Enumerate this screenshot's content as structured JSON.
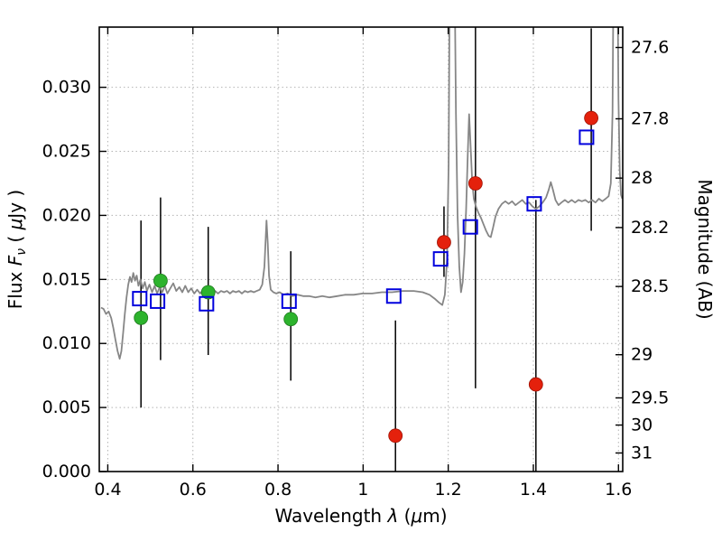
{
  "chart_data": {
    "type": "line",
    "title": "",
    "xlabel": "Wavelength λ (μm)",
    "ylabel": "Flux Fν ( μJy )",
    "y2label": "Magnitude (AB)",
    "xlabel_parts": [
      {
        "t": "Wavelength  "
      },
      {
        "t": "λ",
        "it": true
      },
      {
        "t": " ("
      },
      {
        "t": "μ",
        "it": true
      },
      {
        "t": "m)"
      }
    ],
    "ylabel_parts": [
      {
        "t": "Flux  "
      },
      {
        "t": "F",
        "it": true
      },
      {
        "t": "ν",
        "it": true,
        "sub": true
      },
      {
        "t": "  ( ",
        "after_sub": true
      },
      {
        "t": "μ",
        "it": true
      },
      {
        "t": "Jy )"
      }
    ],
    "xlim": [
      0.38,
      1.61
    ],
    "ylim": [
      0.0,
      0.0347
    ],
    "grid": {
      "show": true,
      "color": "#b3b3b3",
      "style": "dotted"
    },
    "legend": {
      "show": false
    },
    "colors": {
      "spectrum": "#868686",
      "blue_square": "#0000dd",
      "green_circle": "#2db32d",
      "red_circle": "#e4210c",
      "error_bar": "#000000",
      "axis": "#000000"
    },
    "x_ticks": [
      {
        "v": 0.4,
        "label": "0.4"
      },
      {
        "v": 0.6,
        "label": "0.6"
      },
      {
        "v": 0.8,
        "label": "0.8"
      },
      {
        "v": 1.0,
        "label": "1"
      },
      {
        "v": 1.2,
        "label": "1.2"
      },
      {
        "v": 1.4,
        "label": "1.4"
      },
      {
        "v": 1.6,
        "label": "1.6"
      }
    ],
    "y_ticks": [
      {
        "v": 0.0,
        "label": "0.000"
      },
      {
        "v": 0.005,
        "label": "0.005"
      },
      {
        "v": 0.01,
        "label": "0.010"
      },
      {
        "v": 0.015,
        "label": "0.015"
      },
      {
        "v": 0.02,
        "label": "0.020"
      },
      {
        "v": 0.025,
        "label": "0.025"
      },
      {
        "v": 0.03,
        "label": "0.030"
      }
    ],
    "y2_ticks": [
      {
        "label": "27.6",
        "flux_equiv": 0.03311
      },
      {
        "label": "27.8",
        "flux_equiv": 0.02754
      },
      {
        "label": "28",
        "flux_equiv": 0.02291
      },
      {
        "label": "28.2",
        "flux_equiv": 0.01905
      },
      {
        "label": "28.5",
        "flux_equiv": 0.01445
      },
      {
        "label": "29",
        "flux_equiv": 0.00912
      },
      {
        "label": "29.5",
        "flux_equiv": 0.00575
      },
      {
        "label": "30",
        "flux_equiv": 0.00363
      },
      {
        "label": "31",
        "flux_equiv": 0.00145
      }
    ],
    "series": {
      "spectrum": {
        "name": "model-spectrum",
        "color": "#868686",
        "width": 1.8,
        "points": [
          [
            0.384,
            0.0128
          ],
          [
            0.39,
            0.0127
          ],
          [
            0.396,
            0.0123
          ],
          [
            0.402,
            0.0125
          ],
          [
            0.408,
            0.012
          ],
          [
            0.413,
            0.0112
          ],
          [
            0.418,
            0.0103
          ],
          [
            0.423,
            0.0094
          ],
          [
            0.428,
            0.0088
          ],
          [
            0.432,
            0.0094
          ],
          [
            0.436,
            0.0108
          ],
          [
            0.44,
            0.0123
          ],
          [
            0.444,
            0.0136
          ],
          [
            0.448,
            0.0146
          ],
          [
            0.452,
            0.0152
          ],
          [
            0.456,
            0.0148
          ],
          [
            0.46,
            0.0155
          ],
          [
            0.464,
            0.0149
          ],
          [
            0.468,
            0.0153
          ],
          [
            0.472,
            0.0145
          ],
          [
            0.477,
            0.015
          ],
          [
            0.482,
            0.0143
          ],
          [
            0.487,
            0.0148
          ],
          [
            0.492,
            0.0141
          ],
          [
            0.498,
            0.0146
          ],
          [
            0.504,
            0.014
          ],
          [
            0.51,
            0.0145
          ],
          [
            0.516,
            0.0139
          ],
          [
            0.522,
            0.0144
          ],
          [
            0.528,
            0.014
          ],
          [
            0.534,
            0.0145
          ],
          [
            0.54,
            0.0139
          ],
          [
            0.547,
            0.0143
          ],
          [
            0.554,
            0.0147
          ],
          [
            0.561,
            0.0141
          ],
          [
            0.568,
            0.0144
          ],
          [
            0.575,
            0.014
          ],
          [
            0.582,
            0.0145
          ],
          [
            0.589,
            0.014
          ],
          [
            0.596,
            0.0143
          ],
          [
            0.603,
            0.0139
          ],
          [
            0.61,
            0.0142
          ],
          [
            0.617,
            0.0139
          ],
          [
            0.624,
            0.0142
          ],
          [
            0.631,
            0.014
          ],
          [
            0.638,
            0.0142
          ],
          [
            0.645,
            0.0139
          ],
          [
            0.652,
            0.0141
          ],
          [
            0.659,
            0.0139
          ],
          [
            0.666,
            0.0141
          ],
          [
            0.673,
            0.014
          ],
          [
            0.68,
            0.0141
          ],
          [
            0.687,
            0.0139
          ],
          [
            0.694,
            0.0141
          ],
          [
            0.701,
            0.014
          ],
          [
            0.708,
            0.0141
          ],
          [
            0.715,
            0.0139
          ],
          [
            0.722,
            0.0141
          ],
          [
            0.729,
            0.014
          ],
          [
            0.736,
            0.0141
          ],
          [
            0.743,
            0.014
          ],
          [
            0.75,
            0.0141
          ],
          [
            0.757,
            0.0142
          ],
          [
            0.763,
            0.0146
          ],
          [
            0.768,
            0.016
          ],
          [
            0.771,
            0.0182
          ],
          [
            0.773,
            0.0196
          ],
          [
            0.776,
            0.0178
          ],
          [
            0.779,
            0.0153
          ],
          [
            0.783,
            0.0142
          ],
          [
            0.789,
            0.014
          ],
          [
            0.796,
            0.0139
          ],
          [
            0.804,
            0.014
          ],
          [
            0.813,
            0.0138
          ],
          [
            0.823,
            0.0139
          ],
          [
            0.834,
            0.0137
          ],
          [
            0.846,
            0.0138
          ],
          [
            0.859,
            0.0137
          ],
          [
            0.873,
            0.0137
          ],
          [
            0.888,
            0.0136
          ],
          [
            0.904,
            0.0137
          ],
          [
            0.921,
            0.0136
          ],
          [
            0.939,
            0.0137
          ],
          [
            0.958,
            0.0138
          ],
          [
            0.978,
            0.0138
          ],
          [
            0.999,
            0.0139
          ],
          [
            1.021,
            0.0139
          ],
          [
            1.044,
            0.014
          ],
          [
            1.068,
            0.014
          ],
          [
            1.093,
            0.0141
          ],
          [
            1.119,
            0.0141
          ],
          [
            1.14,
            0.014
          ],
          [
            1.156,
            0.0138
          ],
          [
            1.168,
            0.0135
          ],
          [
            1.178,
            0.0132
          ],
          [
            1.186,
            0.013
          ],
          [
            1.192,
            0.0138
          ],
          [
            1.197,
            0.0165
          ],
          [
            1.201,
            0.024
          ],
          [
            1.204,
            0.042
          ],
          [
            1.214,
            0.042
          ],
          [
            1.218,
            0.028
          ],
          [
            1.222,
            0.02
          ],
          [
            1.226,
            0.016
          ],
          [
            1.23,
            0.014
          ],
          [
            1.234,
            0.0148
          ],
          [
            1.238,
            0.017
          ],
          [
            1.242,
            0.0205
          ],
          [
            1.246,
            0.025
          ],
          [
            1.249,
            0.0279
          ],
          [
            1.252,
            0.0258
          ],
          [
            1.256,
            0.0228
          ],
          [
            1.26,
            0.0213
          ],
          [
            1.265,
            0.0207
          ],
          [
            1.271,
            0.0202
          ],
          [
            1.277,
            0.0198
          ],
          [
            1.283,
            0.0193
          ],
          [
            1.289,
            0.0188
          ],
          [
            1.295,
            0.0184
          ],
          [
            1.3,
            0.0183
          ],
          [
            1.305,
            0.019
          ],
          [
            1.311,
            0.0199
          ],
          [
            1.318,
            0.0205
          ],
          [
            1.326,
            0.0209
          ],
          [
            1.334,
            0.0211
          ],
          [
            1.342,
            0.0209
          ],
          [
            1.35,
            0.0211
          ],
          [
            1.358,
            0.0208
          ],
          [
            1.366,
            0.021
          ],
          [
            1.374,
            0.0212
          ],
          [
            1.382,
            0.0209
          ],
          [
            1.39,
            0.021
          ],
          [
            1.398,
            0.0207
          ],
          [
            1.406,
            0.0205
          ],
          [
            1.414,
            0.0207
          ],
          [
            1.422,
            0.021
          ],
          [
            1.43,
            0.0214
          ],
          [
            1.436,
            0.022
          ],
          [
            1.441,
            0.0226
          ],
          [
            1.446,
            0.022
          ],
          [
            1.452,
            0.0212
          ],
          [
            1.459,
            0.0208
          ],
          [
            1.466,
            0.021
          ],
          [
            1.474,
            0.0212
          ],
          [
            1.482,
            0.021
          ],
          [
            1.49,
            0.0212
          ],
          [
            1.498,
            0.021
          ],
          [
            1.506,
            0.0212
          ],
          [
            1.514,
            0.0211
          ],
          [
            1.522,
            0.0212
          ],
          [
            1.53,
            0.021
          ],
          [
            1.538,
            0.0212
          ],
          [
            1.546,
            0.021
          ],
          [
            1.554,
            0.0213
          ],
          [
            1.562,
            0.0211
          ],
          [
            1.57,
            0.0213
          ],
          [
            1.577,
            0.0215
          ],
          [
            1.582,
            0.0225
          ],
          [
            1.586,
            0.028
          ],
          [
            1.589,
            0.042
          ],
          [
            1.597,
            0.042
          ],
          [
            1.6,
            0.029
          ],
          [
            1.603,
            0.0235
          ],
          [
            1.606,
            0.0216
          ],
          [
            1.609,
            0.0213
          ]
        ]
      },
      "error_bars": {
        "name": "photometry-error-bars",
        "color": "#000000",
        "width": 1.5,
        "bars": [
          {
            "x": 0.478,
            "lo": 0.005,
            "hi": 0.0196
          },
          {
            "x": 0.524,
            "lo": 0.0087,
            "hi": 0.0214
          },
          {
            "x": 0.636,
            "lo": 0.0091,
            "hi": 0.0191
          },
          {
            "x": 0.83,
            "lo": 0.0071,
            "hi": 0.0172
          },
          {
            "x": 1.076,
            "lo": 0.0,
            "hi": 0.0118
          },
          {
            "x": 1.19,
            "lo": 0.0152,
            "hi": 0.0207
          },
          {
            "x": 1.264,
            "lo": 0.0065,
            "hi": 0.0348
          },
          {
            "x": 1.406,
            "lo": 0.0,
            "hi": 0.0212
          },
          {
            "x": 1.536,
            "lo": 0.0188,
            "hi": 0.0346
          }
        ]
      },
      "green_circles": {
        "name": "observed-photometry-green",
        "color": "#2db32d",
        "marker": "circle",
        "size": 15,
        "points": [
          [
            0.478,
            0.012
          ],
          [
            0.524,
            0.0149
          ],
          [
            0.636,
            0.014
          ],
          [
            0.83,
            0.0119
          ]
        ]
      },
      "red_circles": {
        "name": "observed-photometry-red",
        "color": "#e4210c",
        "marker": "circle",
        "size": 15,
        "points": [
          [
            1.076,
            0.0028
          ],
          [
            1.19,
            0.0179
          ],
          [
            1.264,
            0.0225
          ],
          [
            1.406,
            0.0068
          ],
          [
            1.536,
            0.0276
          ]
        ]
      },
      "blue_squares": {
        "name": "model-photometry",
        "color": "#0000dd",
        "marker": "square-open",
        "size": 15,
        "points": [
          [
            0.475,
            0.0135
          ],
          [
            0.517,
            0.0133
          ],
          [
            0.632,
            0.0131
          ],
          [
            0.826,
            0.0133
          ],
          [
            1.072,
            0.0137
          ],
          [
            1.182,
            0.0166
          ],
          [
            1.252,
            0.0191
          ],
          [
            1.402,
            0.0209
          ],
          [
            1.525,
            0.0261
          ]
        ]
      }
    }
  }
}
